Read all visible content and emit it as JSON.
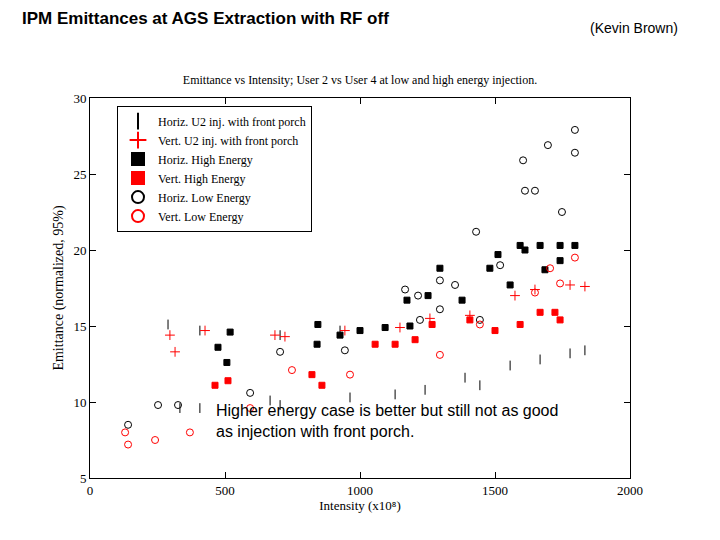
{
  "heading": "IPM Emittances at AGS Extraction with RF off",
  "author": "(Kevin Brown)",
  "chart_data": {
    "type": "scatter",
    "title": "Emittance vs Intensity; User 2 vs User 4 at low and high energy injection.",
    "x_label": "Intensity (x10⁸)",
    "y_label": "Emittance (normalized, 95%)",
    "xlim": [
      0,
      2000
    ],
    "xticks": [
      0,
      500,
      1000,
      1500,
      2000
    ],
    "ylim": [
      5,
      30
    ],
    "yticks": [
      5,
      10,
      15,
      20,
      25,
      30
    ],
    "grid": false,
    "legend": "upper left",
    "annotation": [
      "Higher energy case is better but still not as good",
      "as injection with front porch."
    ],
    "series": [
      {
        "name": "Horiz. U2 inj. with front porch",
        "color": "#000000",
        "marker": "line-ns",
        "x": [
          289,
          407,
          333,
          407,
          667,
          704,
          963,
          1130,
          1241,
          1389,
          1444,
          1556,
          1667,
          1778,
          1833,
          704,
          926
        ],
        "values": [
          15.1,
          14.7,
          9.6,
          9.6,
          10.1,
          9.8,
          10.3,
          10.5,
          10.8,
          11.6,
          11.1,
          12.4,
          12.8,
          13.2,
          13.4,
          14.4,
          14.7
        ]
      },
      {
        "name": "Vert. U2 inj. with front porch",
        "color": "#ff0000",
        "marker": "cross",
        "x": [
          296,
          315,
          426,
          685,
          722,
          944,
          1148,
          1259,
          1407,
          1574,
          1648,
          1778,
          1833
        ],
        "values": [
          14.4,
          13.3,
          14.7,
          14.4,
          14.3,
          14.7,
          14.9,
          15.5,
          15.7,
          17.0,
          17.4,
          17.7,
          17.6
        ]
      },
      {
        "name": "Horiz. High Energy",
        "color": "#000000",
        "marker": "square",
        "x": [
          474,
          519,
          507,
          841,
          844,
          926,
          1000,
          1093,
          1174,
          1185,
          1252,
          1296,
          1378,
          1481,
          1511,
          1593,
          1667,
          1611,
          1685,
          1741,
          1741,
          1796,
          1556
        ],
        "values": [
          13.6,
          14.6,
          12.6,
          13.8,
          15.1,
          14.4,
          14.7,
          14.9,
          16.7,
          15.0,
          17.0,
          18.8,
          16.7,
          18.8,
          19.7,
          20.3,
          20.3,
          20.0,
          18.7,
          20.3,
          19.3,
          20.3,
          17.7
        ]
      },
      {
        "name": "Vert. High Energy",
        "color": "#ff0000",
        "marker": "square",
        "x": [
          463,
          511,
          822,
          859,
          1056,
          1130,
          1204,
          1267,
          1407,
          1500,
          1593,
          1667,
          1722,
          1741
        ],
        "values": [
          11.1,
          11.4,
          11.8,
          11.1,
          13.8,
          13.8,
          14.1,
          15.1,
          15.4,
          14.7,
          15.1,
          15.9,
          15.9,
          15.4
        ]
      },
      {
        "name": "Horiz. Low Energy",
        "color": "#000000",
        "marker": "circle-open",
        "x": [
          141,
          252,
          326,
          593,
          704,
          944,
          1167,
          1215,
          1296,
          1430,
          1296,
          1352,
          1519,
          1604,
          1611,
          1648,
          1696,
          1796,
          1796,
          1748,
          1222,
          1444
        ],
        "values": [
          8.5,
          9.8,
          9.8,
          10.6,
          13.3,
          13.4,
          17.4,
          17.0,
          18.0,
          21.2,
          16.1,
          17.7,
          19.0,
          25.9,
          23.9,
          23.9,
          26.9,
          27.9,
          26.4,
          22.5,
          15.4,
          15.4
        ]
      },
      {
        "name": "Vert. Low Energy",
        "color": "#ff0000",
        "marker": "circle-open",
        "x": [
          130,
          141,
          241,
          370,
          593,
          748,
          963,
          1296,
          1444,
          1648,
          1704,
          1796,
          1741
        ],
        "values": [
          8.0,
          7.2,
          7.5,
          8.0,
          9.6,
          12.1,
          11.8,
          13.1,
          15.1,
          17.2,
          18.8,
          19.5,
          17.8
        ]
      }
    ]
  }
}
